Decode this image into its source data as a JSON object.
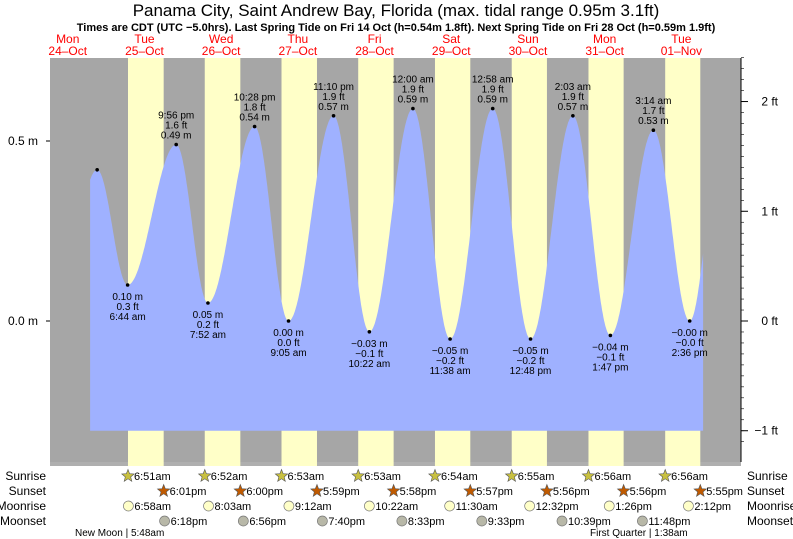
{
  "chart_data": {
    "type": "area",
    "title": "Panama City, Saint Andrew Bay, Florida (max. tidal range 0.95m 3.1ft)",
    "subtitle": "Times are CDT (UTC −5.0hrs). Last Spring Tide on Fri 14 Oct (h=0.54m 1.8ft). Next Spring Tide on Fri 28 Oct (h=0.59m 1.9ft)",
    "days": [
      {
        "dow": "Mon",
        "date": "24–Oct"
      },
      {
        "dow": "Tue",
        "date": "25–Oct"
      },
      {
        "dow": "Wed",
        "date": "26–Oct"
      },
      {
        "dow": "Thu",
        "date": "27–Oct"
      },
      {
        "dow": "Fri",
        "date": "28–Oct"
      },
      {
        "dow": "Sat",
        "date": "29–Oct"
      },
      {
        "dow": "Sun",
        "date": "30–Oct"
      },
      {
        "dow": "Mon",
        "date": "31–Oct"
      },
      {
        "dow": "Tue",
        "date": "01–Nov"
      }
    ],
    "y_left_ticks": [
      {
        "v": 0.5,
        "label": "0.5 m"
      },
      {
        "v": 0.0,
        "label": "0.0 m"
      }
    ],
    "y_right_ticks": [
      {
        "ft": 2,
        "label": "2 ft"
      },
      {
        "ft": 1,
        "label": "1 ft"
      },
      {
        "ft": 0,
        "label": "0 ft"
      },
      {
        "ft": -1,
        "label": "−1 ft"
      }
    ],
    "ylim_m": [
      -0.31,
      0.73
    ],
    "x_range_hours_from_25Oct": [
      -5,
      186.8
    ],
    "tides": [
      {
        "type": "H",
        "day": 0,
        "h": 21.2,
        "m": 0.42,
        "label": false
      },
      {
        "type": "L",
        "day": 1,
        "h": 6.733,
        "m": 0.1,
        "time": "6:44 am",
        "ft": "0.3 ft",
        "mlabel": "0.10 m"
      },
      {
        "type": "H",
        "day": 1,
        "h": 21.933,
        "m": 0.49,
        "time": "9:56 pm",
        "ft": "1.6 ft",
        "mlabel": "0.49 m"
      },
      {
        "type": "L",
        "day": 2,
        "h": 7.867,
        "m": 0.05,
        "time": "7:52 am",
        "ft": "0.2 ft",
        "mlabel": "0.05 m"
      },
      {
        "type": "H",
        "day": 2,
        "h": 22.467,
        "m": 0.54,
        "time": "10:28 pm",
        "ft": "1.8 ft",
        "mlabel": "0.54 m"
      },
      {
        "type": "L",
        "day": 3,
        "h": 9.083,
        "m": 0.0,
        "time": "9:05 am",
        "ft": "0.0 ft",
        "mlabel": "0.00 m"
      },
      {
        "type": "H",
        "day": 3,
        "h": 23.167,
        "m": 0.57,
        "time": "11:10 pm",
        "ft": "1.9 ft",
        "mlabel": "0.57 m"
      },
      {
        "type": "L",
        "day": 4,
        "h": 10.367,
        "m": -0.03,
        "time": "10:22 am",
        "ft": "−0.1 ft",
        "mlabel": "−0.03 m"
      },
      {
        "type": "H",
        "day": 5,
        "h": 0.0,
        "m": 0.59,
        "time": "12:00 am",
        "ft": "1.9 ft",
        "mlabel": "0.59 m"
      },
      {
        "type": "L",
        "day": 5,
        "h": 11.633,
        "m": -0.05,
        "time": "11:38 am",
        "ft": "−0.2 ft",
        "mlabel": "−0.05 m"
      },
      {
        "type": "H",
        "day": 6,
        "h": 0.967,
        "m": 0.59,
        "time": "12:58 am",
        "ft": "1.9 ft",
        "mlabel": "0.59 m"
      },
      {
        "type": "L",
        "day": 6,
        "h": 12.8,
        "m": -0.05,
        "time": "12:48 pm",
        "ft": "−0.2 ft",
        "mlabel": "−0.05 m"
      },
      {
        "type": "H",
        "day": 7,
        "h": 2.05,
        "m": 0.57,
        "time": "2:03 am",
        "ft": "1.9 ft",
        "mlabel": "0.57 m"
      },
      {
        "type": "L",
        "day": 7,
        "h": 13.783,
        "m": -0.04,
        "time": "1:47 pm",
        "ft": "−0.1 ft",
        "mlabel": "−0.04 m"
      },
      {
        "type": "H",
        "day": 8,
        "h": 3.233,
        "m": 0.53,
        "time": "3:14 am",
        "ft": "1.7 ft",
        "mlabel": "0.53 m"
      },
      {
        "type": "L",
        "day": 8,
        "h": 14.6,
        "m": -0.0,
        "time": "2:36 pm",
        "ft": "−0.0 ft",
        "mlabel": "−0.00 m"
      }
    ],
    "sun_moon": {
      "row_labels": {
        "sunrise": "Sunrise",
        "sunset": "Sunset",
        "moonrise": "Moonrise",
        "moonset": "Moonset"
      },
      "sunrise": [
        {
          "day": 1,
          "h": 6.85,
          "t": "6:51am"
        },
        {
          "day": 2,
          "h": 6.867,
          "t": "6:52am"
        },
        {
          "day": 3,
          "h": 6.883,
          "t": "6:53am"
        },
        {
          "day": 4,
          "h": 6.883,
          "t": "6:53am"
        },
        {
          "day": 5,
          "h": 6.9,
          "t": "6:54am"
        },
        {
          "day": 6,
          "h": 6.917,
          "t": "6:55am"
        },
        {
          "day": 7,
          "h": 6.933,
          "t": "6:56am"
        },
        {
          "day": 8,
          "h": 6.933,
          "t": "6:56am"
        }
      ],
      "sunset": [
        {
          "day": 1,
          "h": 18.017,
          "t": "6:01pm"
        },
        {
          "day": 2,
          "h": 18.0,
          "t": "6:00pm"
        },
        {
          "day": 3,
          "h": 17.983,
          "t": "5:59pm"
        },
        {
          "day": 4,
          "h": 17.967,
          "t": "5:58pm"
        },
        {
          "day": 5,
          "h": 17.95,
          "t": "5:57pm"
        },
        {
          "day": 6,
          "h": 17.933,
          "t": "5:56pm"
        },
        {
          "day": 7,
          "h": 17.933,
          "t": "5:56pm"
        },
        {
          "day": 8,
          "h": 17.917,
          "t": "5:55pm"
        }
      ],
      "moonrise": [
        {
          "day": 1,
          "h": 6.967,
          "t": "6:58am"
        },
        {
          "day": 2,
          "h": 8.05,
          "t": "8:03am"
        },
        {
          "day": 3,
          "h": 9.2,
          "t": "9:12am"
        },
        {
          "day": 4,
          "h": 10.367,
          "t": "10:22am"
        },
        {
          "day": 5,
          "h": 11.5,
          "t": "11:30am"
        },
        {
          "day": 6,
          "h": 12.533,
          "t": "12:32pm"
        },
        {
          "day": 7,
          "h": 13.433,
          "t": "1:26pm"
        },
        {
          "day": 8,
          "h": 14.2,
          "t": "2:12pm"
        }
      ],
      "moonset": [
        {
          "day": 1,
          "h": 18.3,
          "t": "6:18pm"
        },
        {
          "day": 2,
          "h": 18.933,
          "t": "6:56pm"
        },
        {
          "day": 3,
          "h": 19.667,
          "t": "7:40pm"
        },
        {
          "day": 4,
          "h": 20.55,
          "t": "8:33pm"
        },
        {
          "day": 5,
          "h": 21.55,
          "t": "9:33pm"
        },
        {
          "day": 6,
          "h": 22.65,
          "t": "10:39pm"
        },
        {
          "day": 7,
          "h": 23.8,
          "t": "11:48pm"
        }
      ],
      "phases": [
        {
          "label": "New Moon | 5:48am"
        },
        {
          "label": "First Quarter | 1:38am"
        }
      ]
    },
    "colors": {
      "night": "#a6a6a6",
      "day": "#ffffc8",
      "water": "#9fb1ff",
      "day_labels": "#ff0000",
      "sunrise": "#c8c040",
      "sunset": "#c05a00",
      "moonrise": "#ffffc8",
      "moonset": "#b8b8a8"
    }
  }
}
